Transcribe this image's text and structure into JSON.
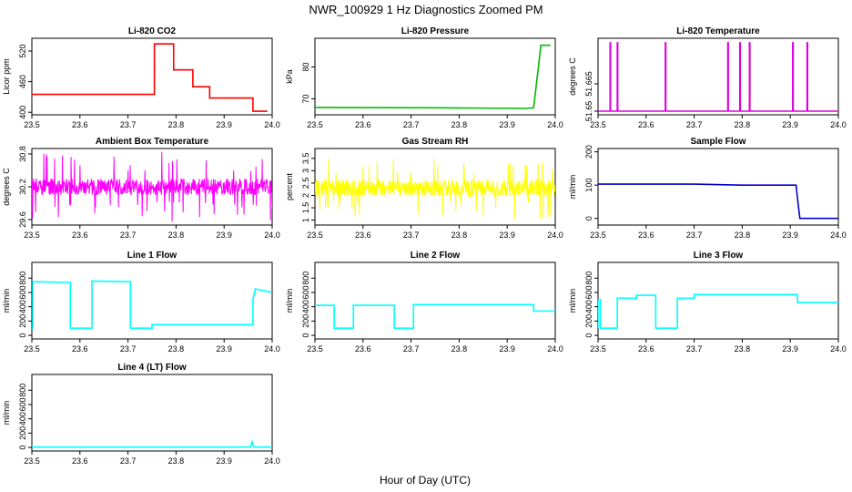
{
  "figure": {
    "title": "NWR_100929  1 Hz Diagnostics Zoomed PM",
    "xlabel": "Hour of Day (UTC)"
  },
  "chart_data": [
    {
      "type": "line",
      "title": "Li-820 CO2",
      "ylabel": "Licor ppm",
      "color": "#ff0000",
      "xlim": [
        23.5,
        24.0
      ],
      "xticks": [
        "23.5",
        "23.6",
        "23.7",
        "23.8",
        "23.9",
        "24.0"
      ],
      "ylim": [
        395,
        545
      ],
      "yticks": [
        400,
        460,
        520
      ],
      "series": [
        {
          "x": [
            23.5,
            23.755,
            23.755,
            23.795,
            23.795,
            23.835,
            23.835,
            23.87,
            23.87,
            23.96,
            23.96,
            23.99
          ],
          "y": [
            435,
            435,
            534,
            534,
            483,
            483,
            450,
            450,
            428,
            428,
            402,
            402
          ]
        }
      ]
    },
    {
      "type": "line",
      "title": "Li-820 Pressure",
      "ylabel": "kPa",
      "color": "#00bb00",
      "xlim": [
        23.5,
        24.0
      ],
      "xticks": [
        "23.5",
        "23.6",
        "23.7",
        "23.8",
        "23.9",
        "24.0"
      ],
      "ylim": [
        65,
        89
      ],
      "yticks": [
        70,
        80
      ],
      "series": [
        {
          "x": [
            23.5,
            23.75,
            23.94,
            23.955,
            23.965,
            23.97,
            23.99
          ],
          "y": [
            67.3,
            67.2,
            67.0,
            67.2,
            80,
            86.8,
            86.8
          ]
        }
      ]
    },
    {
      "type": "line",
      "title": "Li-820 Temperature",
      "ylabel": "degrees C",
      "color": "#dd00dd",
      "xlim": [
        23.5,
        24.0
      ],
      "xticks": [
        "23.5",
        "23.6",
        "23.7",
        "23.8",
        "23.9",
        "24.0"
      ],
      "ylim": [
        51.648,
        51.69
      ],
      "yticks": [
        51.65,
        51.665
      ],
      "series": [
        {
          "x": [
            23.5,
            23.525,
            23.525,
            23.526,
            23.526,
            23.54,
            23.54,
            23.541,
            23.541,
            23.64,
            23.64,
            23.641,
            23.641,
            23.77,
            23.77,
            23.771,
            23.771,
            23.795,
            23.795,
            23.796,
            23.796,
            23.815,
            23.815,
            23.816,
            23.816,
            23.905,
            23.905,
            23.906,
            23.906,
            23.935,
            23.935,
            23.936,
            23.936,
            24.0
          ],
          "y": [
            51.65,
            51.65,
            51.6875,
            51.6875,
            51.65,
            51.65,
            51.6875,
            51.6875,
            51.65,
            51.65,
            51.6875,
            51.6875,
            51.65,
            51.65,
            51.6875,
            51.6875,
            51.65,
            51.65,
            51.6875,
            51.6875,
            51.65,
            51.65,
            51.6875,
            51.6875,
            51.65,
            51.65,
            51.6875,
            51.6875,
            51.65,
            51.65,
            51.6875,
            51.6875,
            51.65,
            51.65
          ]
        }
      ]
    },
    {
      "type": "line",
      "title": "Ambient Box Temperature",
      "ylabel": "degrees C",
      "color": "#ff00ff",
      "xlim": [
        23.5,
        24.0
      ],
      "xticks": [
        "23.5",
        "23.6",
        "23.7",
        "23.8",
        "23.9",
        "24.0"
      ],
      "ylim": [
        29.5,
        30.9
      ],
      "yticks": [
        29.6,
        30.2,
        30.8
      ],
      "noise": {
        "x0": 23.5,
        "x1": 24.0,
        "center": 30.2,
        "amplitude": 0.15,
        "spikes_low": 29.55,
        "spikes_high": 30.85
      },
      "series": [
        {
          "x": [
            23.5,
            24.0
          ],
          "y": [
            30.2,
            30.2
          ]
        }
      ]
    },
    {
      "type": "line",
      "title": "Gas Stream RH",
      "ylabel": "percent",
      "color": "#ffff00",
      "xlim": [
        23.5,
        24.0
      ],
      "xticks": [
        "23.5",
        "23.6",
        "23.7",
        "23.8",
        "23.9",
        "24.0"
      ],
      "ylim": [
        0.8,
        3.9
      ],
      "yticks": [
        1.0,
        1.5,
        2.0,
        2.5,
        3.0,
        3.5
      ],
      "noise": {
        "x0": 23.5,
        "x1": 24.0,
        "center": 2.3,
        "amplitude": 0.35,
        "spikes_low": 0.95,
        "spikes_high": 3.6
      },
      "series": [
        {
          "x": [
            23.5,
            24.0
          ],
          "y": [
            2.3,
            2.3
          ]
        }
      ]
    },
    {
      "type": "line",
      "title": "Sample Flow",
      "ylabel": "ml/min",
      "color": "#0000cc",
      "xlim": [
        23.5,
        24.0
      ],
      "xticks": [
        "23.5",
        "23.6",
        "23.7",
        "23.8",
        "23.9",
        "24.0"
      ],
      "ylim": [
        -20,
        210
      ],
      "yticks": [
        0,
        100,
        200
      ],
      "series": [
        {
          "x": [
            23.5,
            23.7,
            23.8,
            23.912,
            23.915,
            23.92,
            24.0
          ],
          "y": [
            103,
            103,
            100,
            100,
            60,
            0,
            0
          ]
        }
      ]
    },
    {
      "type": "line",
      "title": "Line 1 Flow",
      "ylabel": "ml/min",
      "color": "#00ffff",
      "xlim": [
        23.5,
        24.0
      ],
      "xticks": [
        "23.5",
        "23.6",
        "23.7",
        "23.8",
        "23.9",
        "24.0"
      ],
      "ylim": [
        -50,
        1020
      ],
      "yticks": [
        0,
        200,
        400,
        600,
        800
      ],
      "series": [
        {
          "x": [
            23.5,
            23.502,
            23.502,
            23.58,
            23.58,
            23.625,
            23.625,
            23.705,
            23.705,
            23.75,
            23.75,
            23.96,
            23.96,
            23.965,
            24.0
          ],
          "y": [
            100,
            100,
            750,
            740,
            100,
            100,
            760,
            750,
            100,
            100,
            150,
            150,
            500,
            650,
            600
          ]
        }
      ]
    },
    {
      "type": "line",
      "title": "Line 2 Flow",
      "ylabel": "ml/min",
      "color": "#00ffff",
      "xlim": [
        23.5,
        24.0
      ],
      "xticks": [
        "23.5",
        "23.6",
        "23.7",
        "23.8",
        "23.9",
        "24.0"
      ],
      "ylim": [
        -50,
        1020
      ],
      "yticks": [
        0,
        200,
        400,
        600,
        800
      ],
      "series": [
        {
          "x": [
            23.5,
            23.54,
            23.54,
            23.58,
            23.58,
            23.665,
            23.665,
            23.705,
            23.705,
            23.955,
            23.955,
            24.0
          ],
          "y": [
            420,
            420,
            100,
            100,
            420,
            420,
            100,
            100,
            430,
            430,
            340,
            340
          ]
        }
      ]
    },
    {
      "type": "line",
      "title": "Line 3 Flow",
      "ylabel": "ml/min",
      "color": "#00ffff",
      "xlim": [
        23.5,
        24.0
      ],
      "xticks": [
        "23.5",
        "23.6",
        "23.7",
        "23.8",
        "23.9",
        "24.0"
      ],
      "ylim": [
        -50,
        1020
      ],
      "yticks": [
        0,
        200,
        400,
        600,
        800
      ],
      "series": [
        {
          "x": [
            23.5,
            23.5,
            23.505,
            23.505,
            23.54,
            23.54,
            23.58,
            23.58,
            23.62,
            23.62,
            23.665,
            23.665,
            23.7,
            23.7,
            23.915,
            23.915,
            24.0
          ],
          "y": [
            100,
            500,
            500,
            100,
            100,
            520,
            520,
            560,
            560,
            100,
            100,
            520,
            520,
            570,
            570,
            460,
            460
          ]
        }
      ]
    },
    {
      "type": "line",
      "title": "Line 4 (LT) Flow",
      "ylabel": "ml/min",
      "color": "#00ffff",
      "xlim": [
        23.5,
        24.0
      ],
      "xticks": [
        "23.5",
        "23.6",
        "23.7",
        "23.8",
        "23.9",
        "24.0"
      ],
      "ylim": [
        -50,
        1020
      ],
      "yticks": [
        0,
        200,
        400,
        600,
        800
      ],
      "series": [
        {
          "x": [
            23.5,
            23.955,
            23.958,
            23.962,
            24.0
          ],
          "y": [
            5,
            5,
            80,
            5,
            5
          ]
        }
      ]
    }
  ]
}
